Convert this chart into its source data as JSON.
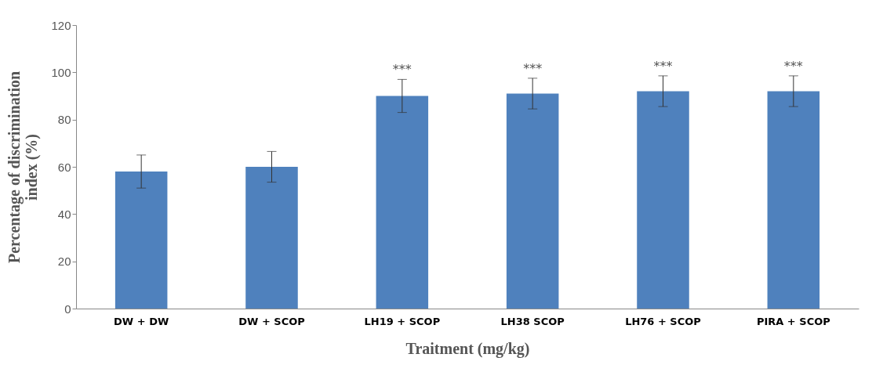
{
  "chart_data": {
    "type": "bar",
    "xlabel": "Traitment (mg/kg)",
    "ylabel": "Percentage of discrimination index (%)",
    "categories": [
      "DW + DW",
      "DW + SCOP",
      "LH19 + SCOP",
      "LH38 SCOP",
      "LH76 + SCOP",
      "PIRA + SCOP"
    ],
    "values": [
      58,
      60,
      90,
      91,
      92,
      92
    ],
    "errors": [
      7,
      6.5,
      7,
      6.5,
      6.5,
      6.5
    ],
    "color": "#4f81bd",
    "ylim": [
      0,
      120
    ],
    "yticks": [
      0,
      20,
      40,
      60,
      80,
      100,
      120
    ],
    "grid": false,
    "annotations": [
      "***",
      "***",
      "***",
      "***"
    ]
  }
}
